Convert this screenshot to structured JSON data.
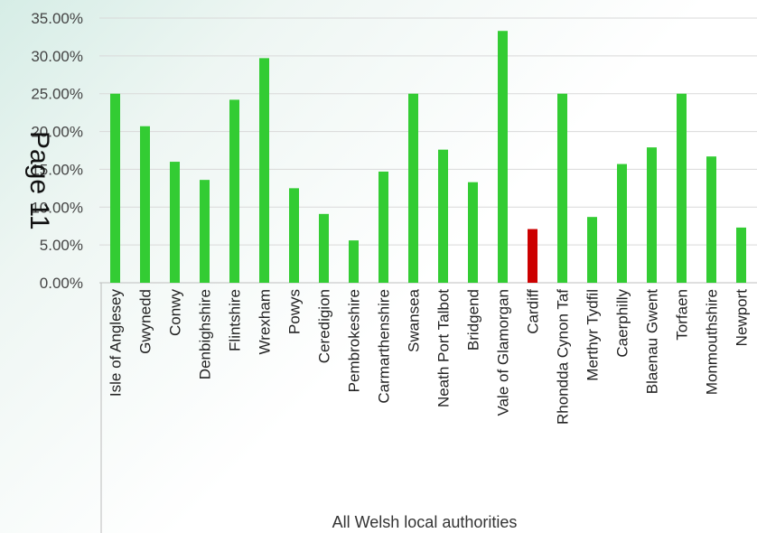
{
  "page_stamp": "Page 11",
  "chart_data": {
    "type": "bar",
    "group_label": "All Welsh local authorities",
    "categories": [
      "Isle of Anglesey",
      "Gwynedd",
      "Conwy",
      "Denbighshire",
      "Flintshire",
      "Wrexham",
      "Powys",
      "Ceredigion",
      "Pembrokeshire",
      "Carmarthenshire",
      "Swansea",
      "Neath Port Talbot",
      "Bridgend",
      "Vale of Glamorgan",
      "Cardiff",
      "Rhondda Cynon Taf",
      "Merthyr Tydfil",
      "Caerphilly",
      "Blaenau Gwent",
      "Torfaen",
      "Monmouthshire",
      "Newport"
    ],
    "values": [
      25.0,
      20.7,
      16.0,
      13.6,
      24.2,
      29.7,
      12.5,
      9.1,
      5.6,
      14.7,
      25.0,
      17.6,
      13.3,
      33.3,
      7.1,
      25.0,
      8.7,
      15.7,
      17.9,
      25.0,
      16.7,
      7.3
    ],
    "highlight": "Cardiff",
    "y_ticks": [
      "0.00%",
      "5.00%",
      "10.00%",
      "15.00%",
      "20.00%",
      "25.00%",
      "30.00%",
      "35.00%"
    ],
    "ylim": [
      0,
      35
    ],
    "grid": true,
    "colors": {
      "bar": "#33cc33",
      "highlight": "#cc0000",
      "grid": "#d9d9d9"
    }
  }
}
